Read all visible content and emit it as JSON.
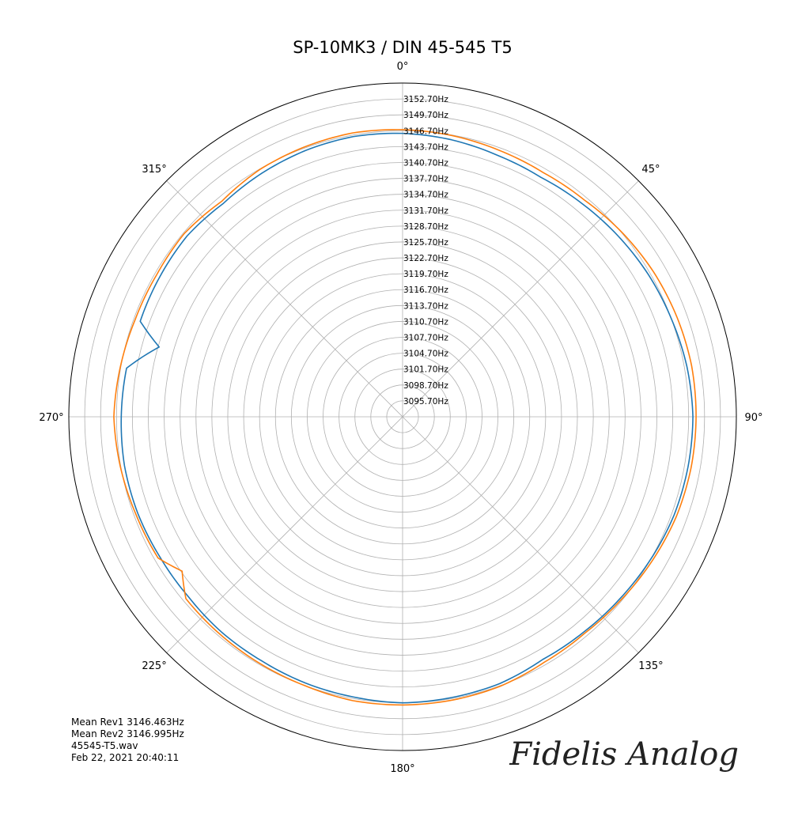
{
  "chart_data": {
    "type": "polar_line",
    "title": "SP-10MK3 / DIN 45-545 T5",
    "theta_direction": "clockwise",
    "theta_zero": "top",
    "angle_ticks": [
      {
        "deg": 0,
        "label": "0°"
      },
      {
        "deg": 45,
        "label": "45°"
      },
      {
        "deg": 90,
        "label": "90°"
      },
      {
        "deg": 135,
        "label": "135°"
      },
      {
        "deg": 180,
        "label": "180°"
      },
      {
        "deg": 225,
        "label": "225°"
      },
      {
        "deg": 270,
        "label": "270°"
      },
      {
        "deg": 315,
        "label": "315°"
      }
    ],
    "r_unit": "Hz",
    "r_min": 3092.7,
    "r_max": 3155.7,
    "r_ticks": [
      3095.7,
      3098.7,
      3101.7,
      3104.7,
      3107.7,
      3110.7,
      3113.7,
      3116.7,
      3119.7,
      3122.7,
      3125.7,
      3128.7,
      3131.7,
      3134.7,
      3137.7,
      3140.7,
      3143.7,
      3146.7,
      3149.7,
      3152.7
    ],
    "r_tick_labels": [
      "3095.70Hz",
      "3098.70Hz",
      "3101.70Hz",
      "3104.70Hz",
      "3107.70Hz",
      "3110.70Hz",
      "3113.70Hz",
      "3116.70Hz",
      "3119.70Hz",
      "3122.70Hz",
      "3125.70Hz",
      "3128.70Hz",
      "3131.70Hz",
      "3134.70Hz",
      "3137.70Hz",
      "3140.70Hz",
      "3143.70Hz",
      "3146.70Hz",
      "3149.70Hz",
      "3152.70Hz"
    ],
    "grid": true,
    "series": [
      {
        "color": "#1f77b4",
        "theta_deg": [
          0,
          10,
          20,
          30,
          40,
          50,
          60,
          70,
          80,
          90,
          100,
          110,
          120,
          130,
          140,
          150,
          160,
          170,
          180,
          190,
          200,
          210,
          220,
          230,
          240,
          250,
          260,
          270,
          280,
          286,
          290,
          300,
          310,
          320,
          330,
          340,
          350
        ],
        "values": [
          3146.2,
          3145.8,
          3145.2,
          3144.9,
          3145.3,
          3145.8,
          3146.3,
          3146.7,
          3147.2,
          3147.5,
          3147.4,
          3147.2,
          3146.7,
          3146.2,
          3145.8,
          3145.6,
          3146.3,
          3146.5,
          3146.7,
          3146.4,
          3146.2,
          3145.9,
          3145.8,
          3145.5,
          3145.6,
          3145.9,
          3146.0,
          3145.8,
          3145.6,
          3140.5,
          3145.4,
          3145.6,
          3145.8,
          3145.3,
          3145.8,
          3146.2,
          3146.4
        ]
      },
      {
        "color": "#ff7f0e",
        "theta_deg": [
          0,
          10,
          20,
          30,
          40,
          50,
          60,
          70,
          80,
          90,
          100,
          110,
          120,
          130,
          140,
          150,
          160,
          170,
          180,
          190,
          200,
          210,
          220,
          230,
          235,
          240,
          250,
          260,
          270,
          280,
          290,
          300,
          310,
          320,
          330,
          340,
          350
        ],
        "values": [
          3146.9,
          3146.6,
          3146.2,
          3145.9,
          3146.1,
          3146.8,
          3147.4,
          3147.8,
          3148.1,
          3148.1,
          3148.0,
          3147.7,
          3147.1,
          3146.5,
          3146.1,
          3146.2,
          3146.8,
          3147.0,
          3147.1,
          3147.1,
          3146.7,
          3146.5,
          3146.3,
          3146.1,
          3143.5,
          3146.0,
          3146.3,
          3146.8,
          3147.2,
          3146.8,
          3146.4,
          3146.3,
          3146.5,
          3145.8,
          3146.6,
          3146.9,
          3147.1
        ]
      }
    ]
  },
  "info": {
    "mean_rev1": "Mean Rev1 3146.463Hz",
    "mean_rev2": "Mean Rev2 3146.995Hz",
    "file": "45545-T5.wav",
    "timestamp": "Feb 22, 2021 20:40:11"
  },
  "logo_text": "Fidelis Analog"
}
